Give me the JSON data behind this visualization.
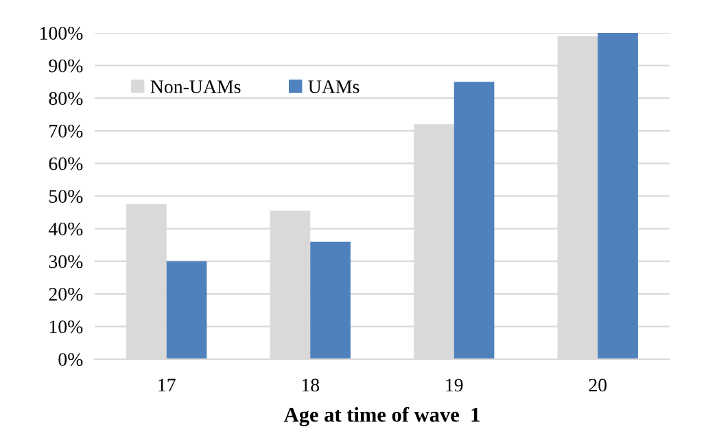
{
  "chart_data": {
    "type": "bar",
    "xlabel": "Age at time of wave  1",
    "categories": [
      "17",
      "18",
      "19",
      "20"
    ],
    "series": [
      {
        "name": "Non-UAMs",
        "color": "#d9d9d9",
        "values": [
          47.5,
          45.5,
          72,
          99
        ]
      },
      {
        "name": "UAMs",
        "color": "#4f81bd",
        "values": [
          30,
          36,
          85,
          100
        ]
      }
    ],
    "ylim": [
      0,
      100
    ],
    "yticks": [
      {
        "value": 0,
        "label": "0%"
      },
      {
        "value": 10,
        "label": "10%"
      },
      {
        "value": 20,
        "label": "20%"
      },
      {
        "value": 30,
        "label": "30%"
      },
      {
        "value": 40,
        "label": "40%"
      },
      {
        "value": 50,
        "label": "50%"
      },
      {
        "value": 60,
        "label": "60%"
      },
      {
        "value": 70,
        "label": "70%"
      },
      {
        "value": 80,
        "label": "80%"
      },
      {
        "value": 90,
        "label": "90%"
      },
      {
        "value": 100,
        "label": "100%"
      }
    ],
    "grid": "y",
    "legend": "top left"
  }
}
